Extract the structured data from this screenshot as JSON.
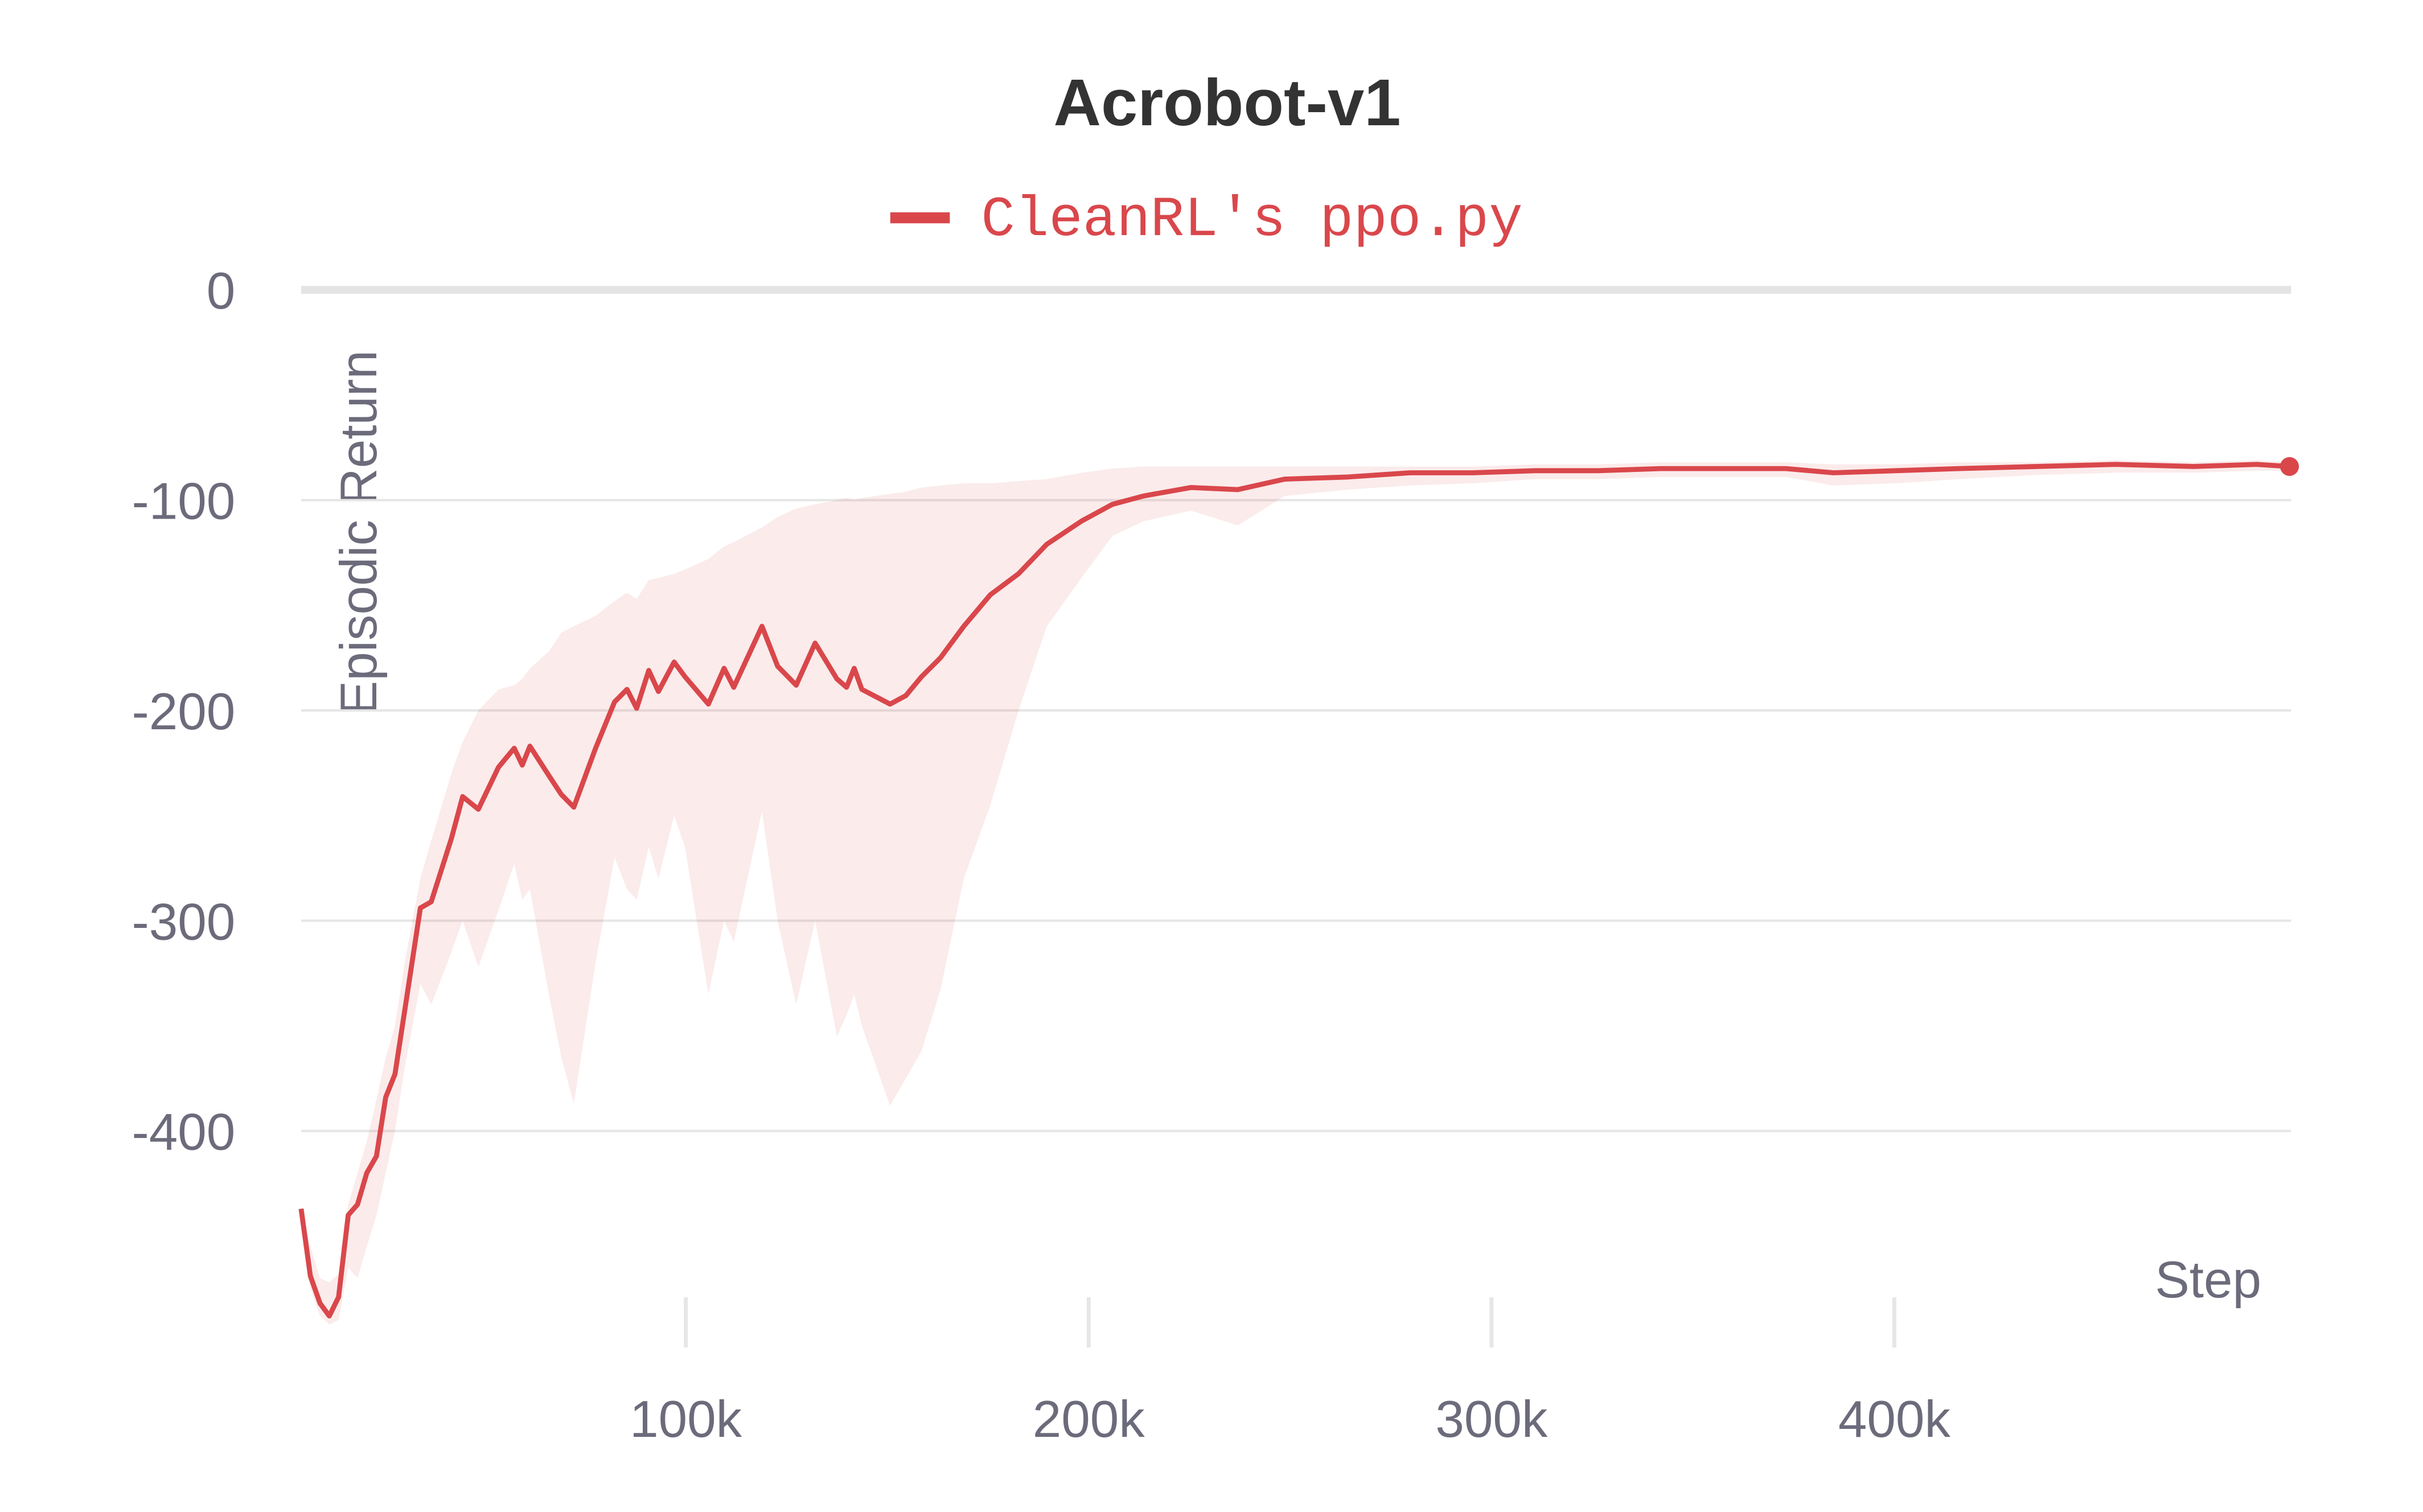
{
  "chart_data": {
    "type": "line",
    "title": "Acrobot-v1",
    "xlabel": "Step",
    "ylabel": "Episodic Return",
    "x": [
      4500,
      6800,
      9200,
      11500,
      13800,
      16200,
      18500,
      20800,
      23200,
      25500,
      27800,
      30200,
      34100,
      36800,
      41800,
      44600,
      48500,
      53500,
      57400,
      59400,
      61300,
      66000,
      69100,
      72200,
      77600,
      82300,
      85400,
      87800,
      90800,
      93200,
      97100,
      99800,
      105600,
      109500,
      111900,
      118900,
      122800,
      127400,
      132100,
      137500,
      139900,
      141800,
      143700,
      150700,
      154600,
      158500,
      163200,
      169000,
      175600,
      182600,
      189600,
      198200,
      205900,
      213700,
      225400,
      237000,
      248700,
      264300,
      279800,
      295400,
      310900,
      326500,
      342000,
      357600,
      373100,
      384900,
      400400,
      416000,
      435400,
      454900,
      474300,
      489900,
      498100
    ],
    "series": [
      {
        "name": "CleanRL's ppo.py",
        "color": "#d9474b",
        "values": [
          -437,
          -469,
          -482,
          -488,
          -479,
          -440,
          -435,
          -420,
          -412,
          -384,
          -373,
          -343,
          -294,
          -291,
          -261,
          -241,
          -247,
          -227,
          -218,
          -226,
          -217,
          -231,
          -240,
          -246,
          -218,
          -196,
          -190,
          -199,
          -181,
          -191,
          -177,
          -184,
          -197,
          -180,
          -189,
          -160,
          -179,
          -188,
          -168,
          -185,
          -189,
          -180,
          -190,
          -197,
          -193,
          -184,
          -175,
          -160,
          -145,
          -135,
          -121,
          -110,
          -102,
          -98,
          -94,
          -95,
          -90,
          -89,
          -87,
          -87,
          -86,
          -86,
          -85,
          -85,
          -85,
          -87,
          -86,
          -85,
          -84,
          -83,
          -84,
          -83,
          -84
        ],
        "upper": [
          -437,
          -455,
          -470,
          -472,
          -468,
          -435,
          -420,
          -405,
          -385,
          -365,
          -350,
          -320,
          -280,
          -262,
          -230,
          -215,
          -200,
          -190,
          -188,
          -185,
          -180,
          -172,
          -163,
          -160,
          -155,
          -148,
          -144,
          -147,
          -138,
          -137,
          -135,
          -133,
          -128,
          -122,
          -120,
          -113,
          -108,
          -104,
          -102,
          -100,
          -99,
          -100,
          -99,
          -97,
          -96,
          -94,
          -93,
          -92,
          -92,
          -91,
          -90,
          -87,
          -85,
          -84,
          -84,
          -84,
          -84,
          -84,
          -84,
          -84,
          -83,
          -83,
          -82,
          -82,
          -82,
          -83,
          -83,
          -82,
          -82,
          -81,
          -82,
          -81,
          -82
        ],
        "lower": [
          -437,
          -475,
          -488,
          -492,
          -490,
          -465,
          -470,
          -455,
          -440,
          -420,
          -400,
          -370,
          -330,
          -340,
          -315,
          -300,
          -322,
          -295,
          -273,
          -290,
          -285,
          -335,
          -365,
          -387,
          -320,
          -270,
          -285,
          -290,
          -265,
          -280,
          -250,
          -265,
          -335,
          -300,
          -310,
          -248,
          -300,
          -340,
          -300,
          -355,
          -345,
          -335,
          -350,
          -388,
          -375,
          -362,
          -333,
          -280,
          -245,
          -200,
          -160,
          -137,
          -117,
          -110,
          -105,
          -112,
          -98,
          -95,
          -93,
          -92,
          -90,
          -90,
          -89,
          -89,
          -89,
          -93,
          -92,
          -90,
          -88,
          -87,
          -87,
          -86,
          -86
        ]
      }
    ],
    "xlim": [
      4500,
      498500
    ],
    "ylim": [
      -500,
      0
    ],
    "xticks": [
      {
        "value": 100000,
        "label": "100k"
      },
      {
        "value": 200000,
        "label": "200k"
      },
      {
        "value": 300000,
        "label": "300k"
      },
      {
        "value": 400000,
        "label": "400k"
      }
    ],
    "yticks": [
      0,
      -100,
      -200,
      -300,
      -400
    ],
    "grid": true,
    "legend": "top"
  }
}
